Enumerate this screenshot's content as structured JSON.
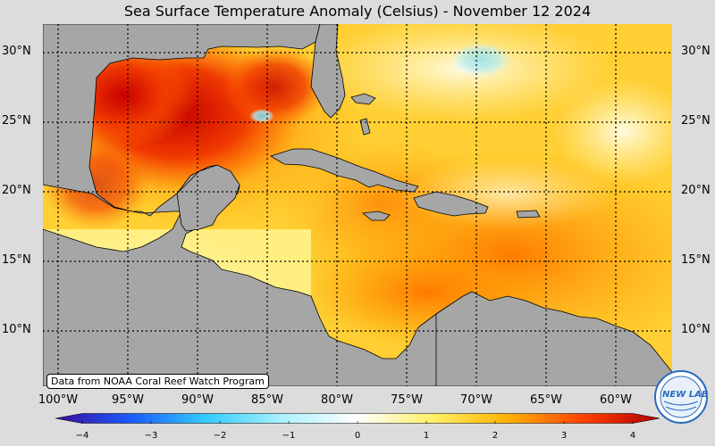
{
  "title": "Sea Surface Temperature Anomaly (Celsius) - November 12 2024",
  "latitude_labels": [
    "30°N",
    "25°N",
    "20°N",
    "15°N",
    "10°N"
  ],
  "longitude_labels": [
    "100°W",
    "95°W",
    "90°W",
    "85°W",
    "80°W",
    "75°W",
    "70°W",
    "65°W",
    "60°W"
  ],
  "colorbar": {
    "min": -4,
    "max": 4,
    "ticks": [
      "−4",
      "−3",
      "−2",
      "−1",
      "0",
      "1",
      "2",
      "3",
      "4"
    ],
    "colors": [
      "#3a0a9a",
      "#1a5cff",
      "#33ccff",
      "#aaf0ff",
      "#ffffff",
      "#fff066",
      "#ffb000",
      "#ff4000",
      "#b00000"
    ]
  },
  "attribution": "Data from NOAA Coral Reef Watch Program",
  "logo": {
    "text": "NEW LAB"
  },
  "colors": {
    "land": "#a6a6a6",
    "background": "#dcdcdc"
  }
}
